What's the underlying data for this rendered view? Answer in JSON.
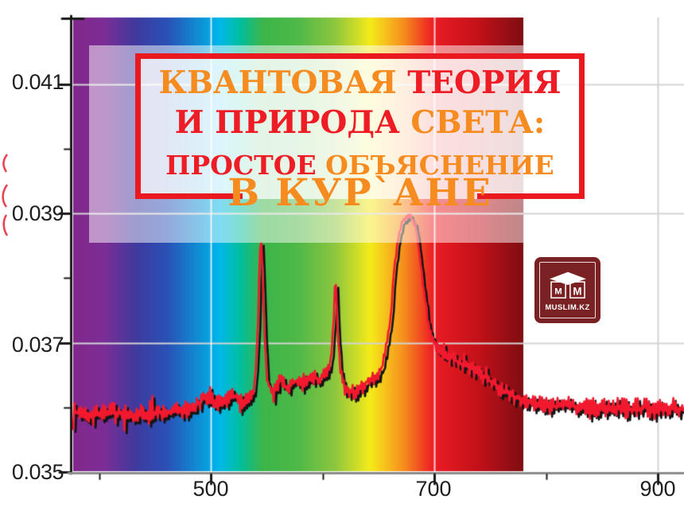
{
  "colors": {
    "title_orange": "#F68B1F",
    "title_red": "#EE1C24",
    "box_border": "#E9191F",
    "curve_red": "#F2192F",
    "curve_shadow": "#141414",
    "logo_bg": "#7A2124",
    "grid": "#D4D4D4",
    "grid_on_spectrum": "rgba(255,255,255,0.8)",
    "axis_black": "#1A1A1A",
    "axis_gray": "#8C8C8C",
    "label": "#1E1E1E"
  },
  "title_box": {
    "lines": [
      {
        "parts": [
          {
            "text": "КВАНТОВАЯ ",
            "color": "orange"
          },
          {
            "text": "ТЕОРИЯ",
            "color": "red"
          }
        ]
      },
      {
        "parts": [
          {
            "text": "И ПРИРОДА ",
            "color": "red"
          },
          {
            "text": "СВЕТА:",
            "color": "orange"
          }
        ]
      },
      {
        "parts": [
          {
            "text": "ПРОСТОЕ ",
            "color": "red"
          },
          {
            "text": "ОБЪЯСНЕНИЕ",
            "color": "orange"
          }
        ]
      },
      {
        "parts": [
          {
            "text": "В КУР`АНЕ",
            "color": "orange"
          }
        ]
      }
    ]
  },
  "logo": {
    "monogram_left": "M",
    "monogram_right": "M",
    "caption": "MUSLIM.KZ",
    "icon": "kaaba-cube-icon"
  },
  "chart_data": {
    "type": "line",
    "title": "",
    "xlabel": "",
    "ylabel": "",
    "xlim": [
      376,
      923
    ],
    "ylim": [
      0.035,
      0.042
    ],
    "x_ticks": [
      500,
      700,
      900
    ],
    "x_minor_ticks": [
      400,
      600,
      800
    ],
    "y_ticks": [
      0.041,
      0.039,
      0.037,
      0.035
    ],
    "y_minor_ticks": [
      0.04,
      0.038,
      0.036
    ],
    "x_tick_labels": [
      "500",
      "700",
      "900"
    ],
    "y_tick_labels": [
      "0.041",
      "0.039",
      "0.037",
      "0.035"
    ],
    "grid": {
      "h_lines": [
        0.037,
        0.039,
        0.041
      ],
      "v_lines_white": [
        500,
        700
      ],
      "v_lines_gray": [
        900
      ]
    },
    "spectrum_band": {
      "from_nm": 376.6,
      "to_nm": 779,
      "stops": [
        [
          0.0,
          "#83278B"
        ],
        [
          0.07,
          "#7B2E96"
        ],
        [
          0.14,
          "#3F3A9E"
        ],
        [
          0.21,
          "#2A52B8"
        ],
        [
          0.28,
          "#0E8FD5"
        ],
        [
          0.325,
          "#00B7EA"
        ],
        [
          0.37,
          "#00BFA0"
        ],
        [
          0.42,
          "#3BB54A"
        ],
        [
          0.5,
          "#4FB948"
        ],
        [
          0.58,
          "#8CC63F"
        ],
        [
          0.66,
          "#F5EB1A"
        ],
        [
          0.73,
          "#F7941D"
        ],
        [
          0.8,
          "#ED1C24"
        ],
        [
          0.9,
          "#C31119"
        ],
        [
          1.0,
          "#7E0E12"
        ]
      ]
    },
    "peaks": [
      {
        "nm": 545,
        "value": 0.0386
      },
      {
        "nm": 612,
        "value": 0.0381
      },
      {
        "nm": 676,
        "value": 0.039
      }
    ],
    "series": [
      {
        "name": "spectrum-intensity",
        "anchors": [
          [
            377,
            0.035923,
            12
          ],
          [
            393,
            0.035898,
            12
          ],
          [
            411,
            0.035935,
            12
          ],
          [
            429,
            0.035886,
            12
          ],
          [
            447,
            0.035923,
            12
          ],
          [
            464,
            0.035935,
            12
          ],
          [
            482,
            0.035972,
            12
          ],
          [
            493,
            0.03612,
            10
          ],
          [
            499,
            0.036169,
            10
          ],
          [
            505,
            0.036058,
            10
          ],
          [
            513,
            0.036145,
            10
          ],
          [
            520,
            0.036194,
            10
          ],
          [
            527,
            0.036083,
            10
          ],
          [
            534,
            0.03612,
            9
          ],
          [
            539,
            0.036292,
            7
          ],
          [
            542,
            0.037129,
            5
          ],
          [
            544,
            0.038483,
            4
          ],
          [
            545.5,
            0.038545,
            4
          ],
          [
            548,
            0.037129,
            5
          ],
          [
            550.5,
            0.036415,
            7
          ],
          [
            555,
            0.036243,
            9
          ],
          [
            562,
            0.036415,
            9
          ],
          [
            569,
            0.036292,
            9
          ],
          [
            576,
            0.036415,
            9
          ],
          [
            583,
            0.036354,
            9
          ],
          [
            590,
            0.036489,
            9
          ],
          [
            597,
            0.036415,
            9
          ],
          [
            603,
            0.036538,
            8
          ],
          [
            607,
            0.036612,
            7
          ],
          [
            610,
            0.037375,
            5
          ],
          [
            611.7,
            0.038138,
            4
          ],
          [
            613,
            0.037375,
            5
          ],
          [
            616,
            0.036538,
            7
          ],
          [
            620,
            0.036292,
            9
          ],
          [
            626,
            0.036243,
            10
          ],
          [
            633,
            0.036268,
            10
          ],
          [
            640,
            0.036391,
            9
          ],
          [
            647,
            0.036465,
            9
          ],
          [
            653,
            0.036612,
            8
          ],
          [
            657,
            0.036932,
            6
          ],
          [
            661,
            0.0374,
            5
          ],
          [
            664,
            0.038114,
            4
          ],
          [
            668,
            0.038655,
            4
          ],
          [
            671.5,
            0.038889,
            4
          ],
          [
            676,
            0.038963,
            4
          ],
          [
            680,
            0.038926,
            4
          ],
          [
            684,
            0.038754,
            4
          ],
          [
            687,
            0.038335,
            4
          ],
          [
            691,
            0.037769,
            5
          ],
          [
            694,
            0.037326,
            5
          ],
          [
            699,
            0.037031,
            6
          ],
          [
            703,
            0.036908,
            7
          ],
          [
            710,
            0.036809,
            8
          ],
          [
            717,
            0.036748,
            8
          ],
          [
            724,
            0.036674,
            8
          ],
          [
            731,
            0.036612,
            9
          ],
          [
            738,
            0.036563,
            9
          ],
          [
            747,
            0.036452,
            9
          ],
          [
            755,
            0.036342,
            10
          ],
          [
            764,
            0.036243,
            10
          ],
          [
            772,
            0.036169,
            11
          ],
          [
            781,
            0.036095,
            11
          ],
          [
            792,
            0.036046,
            12
          ],
          [
            804,
            0.036009,
            12
          ],
          [
            817,
            0.036034,
            12
          ],
          [
            831,
            0.035997,
            13
          ],
          [
            845,
            0.035972,
            13
          ],
          [
            859,
            0.036009,
            13
          ],
          [
            874,
            0.035972,
            13
          ],
          [
            888,
            0.035997,
            13
          ],
          [
            902,
            0.03596,
            13
          ],
          [
            913,
            0.035997,
            13
          ],
          [
            923,
            0.035972,
            13
          ]
        ]
      }
    ]
  }
}
